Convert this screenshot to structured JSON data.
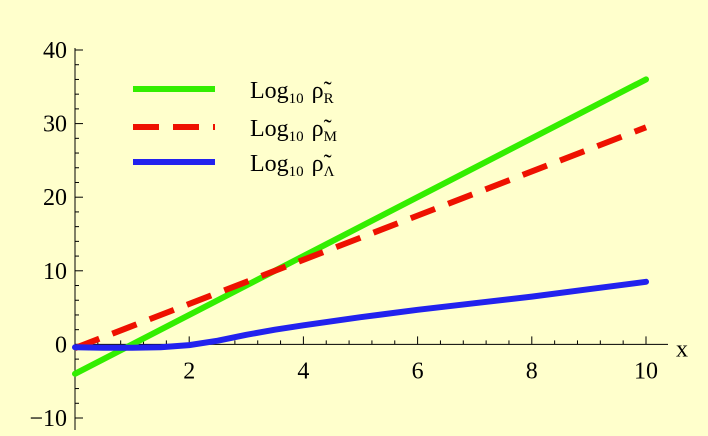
{
  "chart_data": {
    "type": "line",
    "background": "#FFFFCC",
    "title": "",
    "xlabel": "x",
    "ylabel": "",
    "xlim": [
      0,
      10
    ],
    "ylim": [
      -10,
      40
    ],
    "x_ticks": [
      2,
      4,
      6,
      8,
      10
    ],
    "x_tick_labels": [
      "2",
      "4",
      "6",
      "8",
      "10"
    ],
    "y_ticks": [
      -10,
      0,
      10,
      20,
      30,
      40
    ],
    "y_tick_labels": [
      "−10",
      "0",
      "10",
      "20",
      "30",
      "40"
    ],
    "grid": false,
    "legend_position": "top-left",
    "series": [
      {
        "legend_prefix": "Log",
        "legend_base": "10",
        "legend_symbol": "ρ̃",
        "legend_subscript": "R",
        "color": "#33EE00",
        "dash": "solid",
        "x": [
          0,
          10
        ],
        "y": [
          -4,
          36
        ]
      },
      {
        "legend_prefix": "Log",
        "legend_base": "10",
        "legend_symbol": "ρ̃",
        "legend_subscript": "M",
        "color": "#EE1100",
        "dash": "dashed",
        "x": [
          0,
          10
        ],
        "y": [
          -0.5,
          29.5
        ]
      },
      {
        "legend_prefix": "Log",
        "legend_base": "10",
        "legend_symbol": "ρ̃",
        "legend_subscript": "Λ",
        "color": "#2222EE",
        "dash": "solid",
        "x": [
          0,
          0.5,
          1,
          1.5,
          2,
          2.5,
          3,
          3.5,
          4,
          5,
          6,
          7,
          8,
          9,
          10
        ],
        "y": [
          -0.4,
          -0.45,
          -0.45,
          -0.4,
          -0.1,
          0.5,
          1.3,
          2.0,
          2.6,
          3.7,
          4.7,
          5.6,
          6.5,
          7.5,
          8.5
        ]
      }
    ]
  }
}
